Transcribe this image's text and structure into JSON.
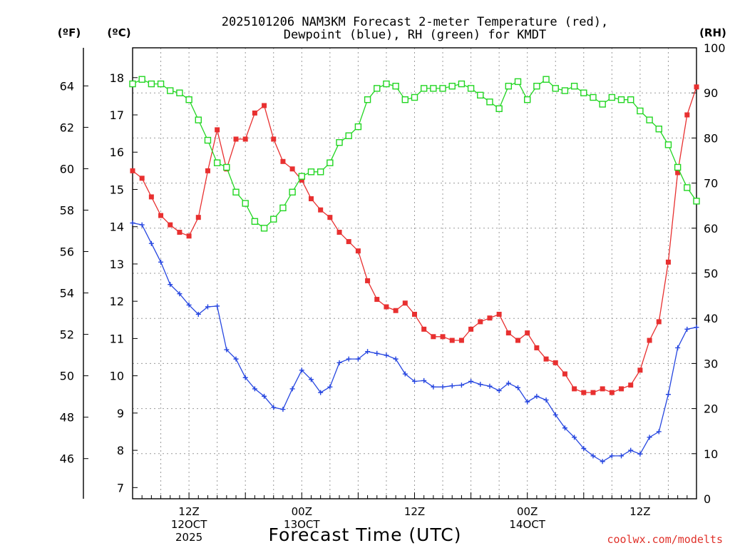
{
  "chart_data": {
    "type": "line",
    "title_line1": "2025101206 NAM3KM Forecast 2-meter Temperature (red),",
    "title_line2": "Dewpoint (blue), RH (green) for KMDT",
    "left_outer_unit": "(ºF)",
    "left_inner_unit": "(ºC)",
    "right_unit": "(RH)",
    "xlabel": "Forecast Time (UTC)",
    "credit": "coolwx.com/modelts",
    "x_range_hours": [
      6,
      66
    ],
    "celsius_range": [
      6.7,
      18.8
    ],
    "rh_range": [
      0,
      100
    ],
    "celsius_ticks": [
      7,
      8,
      9,
      10,
      11,
      12,
      13,
      14,
      15,
      16,
      17,
      18
    ],
    "fahrenheit_ticks": [
      46,
      48,
      50,
      52,
      54,
      56,
      58,
      60,
      62,
      64
    ],
    "rh_ticks": [
      0,
      10,
      20,
      30,
      40,
      50,
      60,
      70,
      80,
      90,
      100
    ],
    "x_ticks": [
      {
        "hour": 12,
        "lines": [
          "12Z",
          "12OCT",
          "2025"
        ]
      },
      {
        "hour": 24,
        "lines": [
          "00Z",
          "13OCT"
        ]
      },
      {
        "hour": 36,
        "lines": [
          "12Z"
        ]
      },
      {
        "hour": 48,
        "lines": [
          "00Z",
          "14OCT"
        ]
      },
      {
        "hour": 60,
        "lines": [
          "12Z"
        ]
      }
    ],
    "series": [
      {
        "name": "2-meter Temperature",
        "unit": "C",
        "color": "#e83030",
        "marker": "filled-square",
        "values": [
          15.5,
          15.3,
          14.8,
          14.3,
          14.05,
          13.85,
          13.75,
          14.25,
          15.5,
          16.6,
          15.55,
          16.35,
          16.35,
          17.05,
          17.25,
          16.35,
          15.75,
          15.55,
          15.25,
          14.75,
          14.45,
          14.25,
          13.85,
          13.6,
          13.35,
          12.55,
          12.05,
          11.85,
          11.75,
          11.95,
          11.65,
          11.25,
          11.05,
          11.05,
          10.95,
          10.95,
          11.25,
          11.45,
          11.55,
          11.65,
          11.15,
          10.95,
          11.15,
          10.75,
          10.45,
          10.35,
          10.05,
          9.65,
          9.55,
          9.55,
          9.65,
          9.55,
          9.65,
          9.75,
          10.15,
          10.95,
          11.45,
          13.05,
          15.45,
          17.0,
          17.75
        ]
      },
      {
        "name": "Dewpoint",
        "unit": "C",
        "color": "#2646e0",
        "marker": "plus",
        "values": [
          14.1,
          14.05,
          13.55,
          13.05,
          12.45,
          12.2,
          11.9,
          11.65,
          11.85,
          11.87,
          10.7,
          10.45,
          9.95,
          9.65,
          9.45,
          9.15,
          9.1,
          9.65,
          10.15,
          9.9,
          9.55,
          9.7,
          10.35,
          10.45,
          10.45,
          10.65,
          10.6,
          10.55,
          10.45,
          10.05,
          9.85,
          9.87,
          9.7,
          9.7,
          9.73,
          9.75,
          9.85,
          9.77,
          9.72,
          9.6,
          9.8,
          9.68,
          9.3,
          9.45,
          9.35,
          8.95,
          8.6,
          8.35,
          8.05,
          7.85,
          7.7,
          7.85,
          7.85,
          8.0,
          7.9,
          8.35,
          8.5,
          9.5,
          10.75,
          11.25,
          11.3
        ]
      },
      {
        "name": "RH",
        "unit": "%",
        "color": "#22d622",
        "marker": "open-square",
        "values": [
          92,
          93,
          92,
          92,
          90.5,
          90,
          88.5,
          84,
          79.5,
          74.5,
          73.5,
          68,
          65.5,
          61.5,
          60,
          62,
          64.5,
          68,
          71.5,
          72.5,
          72.5,
          74.5,
          79,
          80.5,
          82.5,
          88.5,
          91,
          92,
          91.5,
          88.5,
          89,
          91,
          91,
          91,
          91.5,
          92,
          91,
          89.5,
          88,
          86.5,
          91.5,
          92.5,
          88.5,
          91.5,
          93,
          91,
          90.5,
          91.5,
          90,
          89,
          87.5,
          89,
          88.5,
          88.5,
          86,
          84,
          82,
          78.5,
          73.5,
          69,
          66
        ]
      }
    ]
  }
}
